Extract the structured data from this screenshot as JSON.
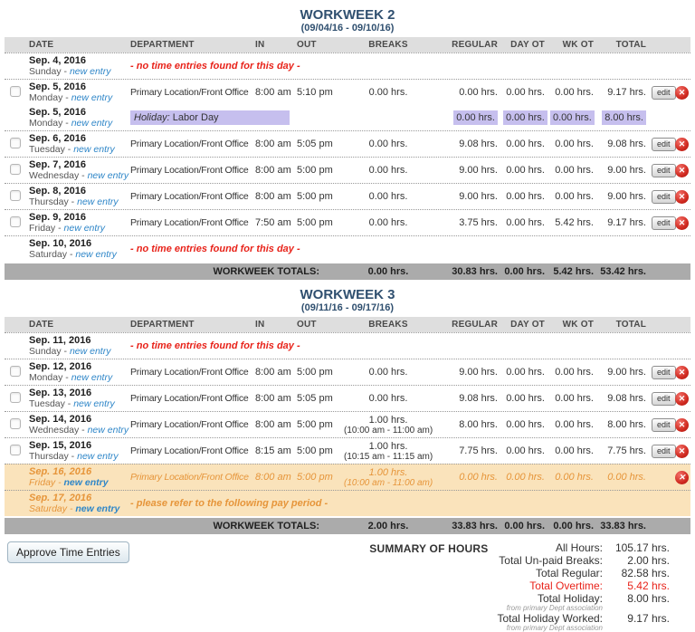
{
  "colors": {
    "header_navy": "#2F4F6F",
    "link_blue": "#2E86C8",
    "alert_red": "#E8231A",
    "holiday_lavender": "#C6BFEE",
    "pending_orange_bg": "#FAE3BB",
    "pending_orange_text": "#E6953A",
    "totals_bar_gray": "#ABABAB"
  },
  "icons": {
    "delete": "✕"
  },
  "labels": {
    "edit": "edit"
  },
  "workweeks": [
    {
      "title": "WORKWEEK 2",
      "date_range": "(09/04/16 - 09/10/16)",
      "columns": [
        "DATE",
        "DEPARTMENT",
        "IN",
        "OUT",
        "BREAKS",
        "REGULAR",
        "DAY OT",
        "WK OT",
        "TOTAL"
      ],
      "rows": [
        {
          "type": "message",
          "date": "Sep. 4, 2016",
          "day": "Sunday",
          "new_entry": "new entry",
          "message": "- no time entries found for this day -",
          "message_color": "red"
        },
        {
          "type": "entry",
          "checkbox": true,
          "date": "Sep. 5, 2016",
          "day": "Monday",
          "new_entry": "new entry",
          "department": "Primary Location/Front Office",
          "in": "8:00 am",
          "out": "5:10 pm",
          "breaks": "0.00 hrs.",
          "regular": "0.00 hrs.",
          "day_ot": "0.00 hrs.",
          "wk_ot": "0.00 hrs.",
          "total": "9.17 hrs.",
          "edit": true,
          "delete": true
        },
        {
          "type": "holiday",
          "date": "Sep. 5, 2016",
          "day": "Monday",
          "new_entry": "new entry",
          "holiday_label": "Holiday:",
          "holiday_name": "Labor Day",
          "regular": "0.00 hrs.",
          "day_ot": "0.00 hrs.",
          "wk_ot": "0.00 hrs.",
          "total": "8.00 hrs."
        },
        {
          "type": "entry",
          "checkbox": true,
          "date": "Sep. 6, 2016",
          "day": "Tuesday",
          "new_entry": "new entry",
          "department": "Primary Location/Front Office",
          "in": "8:00 am",
          "out": "5:05 pm",
          "breaks": "0.00 hrs.",
          "regular": "9.08 hrs.",
          "day_ot": "0.00 hrs.",
          "wk_ot": "0.00 hrs.",
          "total": "9.08 hrs.",
          "edit": true,
          "delete": true
        },
        {
          "type": "entry",
          "checkbox": true,
          "date": "Sep. 7, 2016",
          "day": "Wednesday",
          "new_entry": "new entry",
          "department": "Primary Location/Front Office",
          "in": "8:00 am",
          "out": "5:00 pm",
          "breaks": "0.00 hrs.",
          "regular": "9.00 hrs.",
          "day_ot": "0.00 hrs.",
          "wk_ot": "0.00 hrs.",
          "total": "9.00 hrs.",
          "edit": true,
          "delete": true
        },
        {
          "type": "entry",
          "checkbox": true,
          "date": "Sep. 8, 2016",
          "day": "Thursday",
          "new_entry": "new entry",
          "department": "Primary Location/Front Office",
          "in": "8:00 am",
          "out": "5:00 pm",
          "breaks": "0.00 hrs.",
          "regular": "9.00 hrs.",
          "day_ot": "0.00 hrs.",
          "wk_ot": "0.00 hrs.",
          "total": "9.00 hrs.",
          "edit": true,
          "delete": true
        },
        {
          "type": "entry",
          "checkbox": true,
          "date": "Sep. 9, 2016",
          "day": "Friday",
          "new_entry": "new entry",
          "department": "Primary Location/Front Office",
          "in": "7:50 am",
          "out": "5:00 pm",
          "breaks": "0.00 hrs.",
          "regular": "3.75 hrs.",
          "day_ot": "0.00 hrs.",
          "wk_ot": "5.42 hrs.",
          "total": "9.17 hrs.",
          "edit": true,
          "delete": true
        },
        {
          "type": "message",
          "date": "Sep. 10, 2016",
          "day": "Saturday",
          "new_entry": "new entry",
          "message": "- no time entries found for this day -",
          "message_color": "red"
        }
      ],
      "totals": {
        "label": "WORKWEEK TOTALS:",
        "breaks": "0.00 hrs.",
        "regular": "30.83 hrs.",
        "day_ot": "0.00 hrs.",
        "wk_ot": "5.42 hrs.",
        "total": "53.42 hrs."
      }
    },
    {
      "title": "WORKWEEK 3",
      "date_range": "(09/11/16 - 09/17/16)",
      "columns": [
        "DATE",
        "DEPARTMENT",
        "IN",
        "OUT",
        "BREAKS",
        "REGULAR",
        "DAY OT",
        "WK OT",
        "TOTAL"
      ],
      "rows": [
        {
          "type": "message",
          "date": "Sep. 11, 2016",
          "day": "Sunday",
          "new_entry": "new entry",
          "message": "- no time entries found for this day -",
          "message_color": "red"
        },
        {
          "type": "entry",
          "checkbox": true,
          "date": "Sep. 12, 2016",
          "day": "Monday",
          "new_entry": "new entry",
          "department": "Primary Location/Front Office",
          "in": "8:00 am",
          "out": "5:00 pm",
          "breaks": "0.00 hrs.",
          "regular": "9.00 hrs.",
          "day_ot": "0.00 hrs.",
          "wk_ot": "0.00 hrs.",
          "total": "9.00 hrs.",
          "edit": true,
          "delete": true
        },
        {
          "type": "entry",
          "checkbox": true,
          "date": "Sep. 13, 2016",
          "day": "Tuesday",
          "new_entry": "new entry",
          "department": "Primary Location/Front Office",
          "in": "8:00 am",
          "out": "5:05 pm",
          "breaks": "0.00 hrs.",
          "regular": "9.08 hrs.",
          "day_ot": "0.00 hrs.",
          "wk_ot": "0.00 hrs.",
          "total": "9.08 hrs.",
          "edit": true,
          "delete": true
        },
        {
          "type": "entry",
          "checkbox": true,
          "date": "Sep. 14, 2016",
          "day": "Wednesday",
          "new_entry": "new entry",
          "department": "Primary Location/Front Office",
          "in": "8:00 am",
          "out": "5:00 pm",
          "breaks": "1.00 hrs.",
          "breaks_detail": "(10:00 am - 11:00 am)",
          "regular": "8.00 hrs.",
          "day_ot": "0.00 hrs.",
          "wk_ot": "0.00 hrs.",
          "total": "8.00 hrs.",
          "edit": true,
          "delete": true
        },
        {
          "type": "entry",
          "checkbox": true,
          "date": "Sep. 15, 2016",
          "day": "Thursday",
          "new_entry": "new entry",
          "department": "Primary Location/Front Office",
          "in": "8:15 am",
          "out": "5:00 pm",
          "breaks": "1.00 hrs.",
          "breaks_detail": "(10:15 am - 11:15 am)",
          "regular": "7.75 hrs.",
          "day_ot": "0.00 hrs.",
          "wk_ot": "0.00 hrs.",
          "total": "7.75 hrs.",
          "edit": true,
          "delete": true
        },
        {
          "type": "entry",
          "checkbox": false,
          "highlight": "orange",
          "date": "Sep. 16, 2016",
          "day": "Friday",
          "new_entry": "new entry",
          "department": "Primary Location/Front Office",
          "in": "8:00 am",
          "out": "5:00 pm",
          "breaks": "1.00 hrs.",
          "breaks_detail": "(10:00 am - 11:00 am)",
          "regular": "0.00 hrs.",
          "day_ot": "0.00 hrs.",
          "wk_ot": "0.00 hrs.",
          "total": "0.00 hrs.",
          "edit": false,
          "delete": true
        },
        {
          "type": "message",
          "highlight": "orange",
          "date": "Sep. 17, 2016",
          "day": "Saturday",
          "new_entry": "new entry",
          "message": "- please refer to the following pay period -",
          "message_color": "orange"
        }
      ],
      "totals": {
        "label": "WORKWEEK TOTALS:",
        "breaks": "2.00 hrs.",
        "regular": "33.83 hrs.",
        "day_ot": "0.00 hrs.",
        "wk_ot": "0.00 hrs.",
        "total": "33.83 hrs."
      }
    }
  ],
  "footer": {
    "approve_button": "Approve Time Entries",
    "summary_title": "SUMMARY OF HOURS",
    "summary_rows": [
      {
        "label": "All Hours:",
        "value": "105.17 hrs."
      },
      {
        "label": "Total Un-paid Breaks:",
        "value": "2.00 hrs."
      },
      {
        "label": "Total Regular:",
        "value": "82.58 hrs."
      },
      {
        "label": "Total Overtime:",
        "value": "5.42 hrs.",
        "style": "red"
      },
      {
        "label": "Total Holiday:",
        "value": "8.00 hrs.",
        "sub": "from primary Dept association"
      },
      {
        "label": "Total Holiday Worked:",
        "value": "9.17 hrs.",
        "sub": "from primary Dept association"
      }
    ]
  }
}
